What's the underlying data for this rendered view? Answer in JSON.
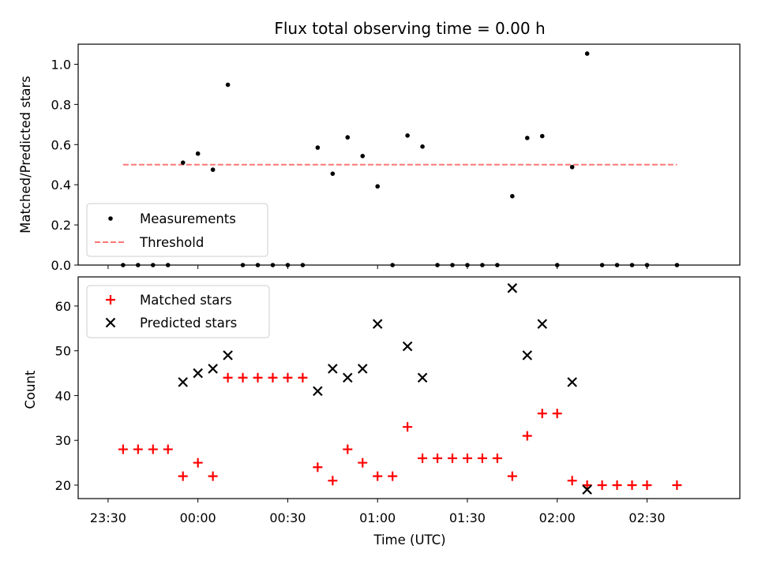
{
  "chart_data": [
    {
      "type": "scatter",
      "title": "Flux total observing time = 0.00 h",
      "ylabel": "Matched/Predicted stars",
      "xlabel": "",
      "ylim": [
        0,
        1.1
      ],
      "yticks": [
        "0.0",
        "0.2",
        "0.4",
        "0.6",
        "0.8",
        "1.0"
      ],
      "threshold": {
        "value": 0.5,
        "x_start": "23:35",
        "x_end": "02:40",
        "color": "#ff7777"
      },
      "legend_position": "lower-left",
      "series": [
        {
          "name": "Measurements",
          "color": "#000000",
          "marker": "dot",
          "x": [
            "23:35",
            "23:40",
            "23:45",
            "23:50",
            "23:55",
            "00:00",
            "00:05",
            "00:10",
            "00:15",
            "00:20",
            "00:25",
            "00:30",
            "00:35",
            "00:40",
            "00:45",
            "00:50",
            "00:55",
            "01:00",
            "01:05",
            "01:10",
            "01:15",
            "01:20",
            "01:25",
            "01:30",
            "01:35",
            "01:40",
            "01:45",
            "01:50",
            "01:55",
            "02:00",
            "02:05",
            "02:10",
            "02:15",
            "02:20",
            "02:25",
            "02:30",
            "02:40"
          ],
          "y": [
            0,
            0,
            0,
            0,
            0.51,
            0.555,
            0.475,
            0.898,
            0,
            0,
            0,
            0,
            0,
            0.585,
            0.455,
            0.636,
            0.543,
            0.392,
            0,
            0.645,
            0.59,
            0,
            0,
            0,
            0,
            0,
            0.343,
            0.633,
            0.642,
            0,
            0.488,
            1.053,
            0,
            0,
            0,
            0,
            0
          ]
        },
        {
          "name": "Threshold",
          "color": "#ff7777",
          "marker": "dashed-line"
        }
      ]
    },
    {
      "type": "scatter",
      "title": "",
      "xlabel": "Time (UTC)",
      "ylabel": "Count",
      "ylim": [
        17,
        66.5
      ],
      "yticks": [
        "20",
        "30",
        "40",
        "50",
        "60"
      ],
      "xticks": [
        "23:30",
        "00:00",
        "00:30",
        "01:00",
        "01:30",
        "02:00",
        "02:30"
      ],
      "legend_position": "upper-left",
      "series": [
        {
          "name": "Matched stars",
          "color": "#ff0000",
          "marker": "plus",
          "x": [
            "23:35",
            "23:40",
            "23:45",
            "23:50",
            "23:55",
            "00:00",
            "00:05",
            "00:10",
            "00:15",
            "00:20",
            "00:25",
            "00:30",
            "00:35",
            "00:40",
            "00:45",
            "00:50",
            "00:55",
            "01:00",
            "01:05",
            "01:10",
            "01:15",
            "01:20",
            "01:25",
            "01:30",
            "01:35",
            "01:40",
            "01:45",
            "01:50",
            "01:55",
            "02:00",
            "02:05",
            "02:10",
            "02:15",
            "02:20",
            "02:25",
            "02:30",
            "02:40"
          ],
          "y": [
            28,
            28,
            28,
            28,
            22,
            25,
            22,
            44,
            44,
            44,
            44,
            44,
            44,
            24,
            21,
            28,
            25,
            22,
            22,
            33,
            26,
            26,
            26,
            26,
            26,
            26,
            22,
            31,
            36,
            36,
            21,
            20,
            20,
            20,
            20,
            20,
            20
          ]
        },
        {
          "name": "Predicted stars",
          "color": "#000000",
          "marker": "x",
          "x": [
            "23:55",
            "00:00",
            "00:05",
            "00:10",
            "00:40",
            "00:45",
            "00:50",
            "00:55",
            "01:00",
            "01:10",
            "01:15",
            "01:45",
            "01:50",
            "01:55",
            "02:05",
            "02:10"
          ],
          "y": [
            43,
            45,
            46,
            49,
            41,
            46,
            44,
            46,
            56,
            51,
            44,
            64,
            49,
            56,
            43,
            19
          ]
        }
      ]
    }
  ]
}
